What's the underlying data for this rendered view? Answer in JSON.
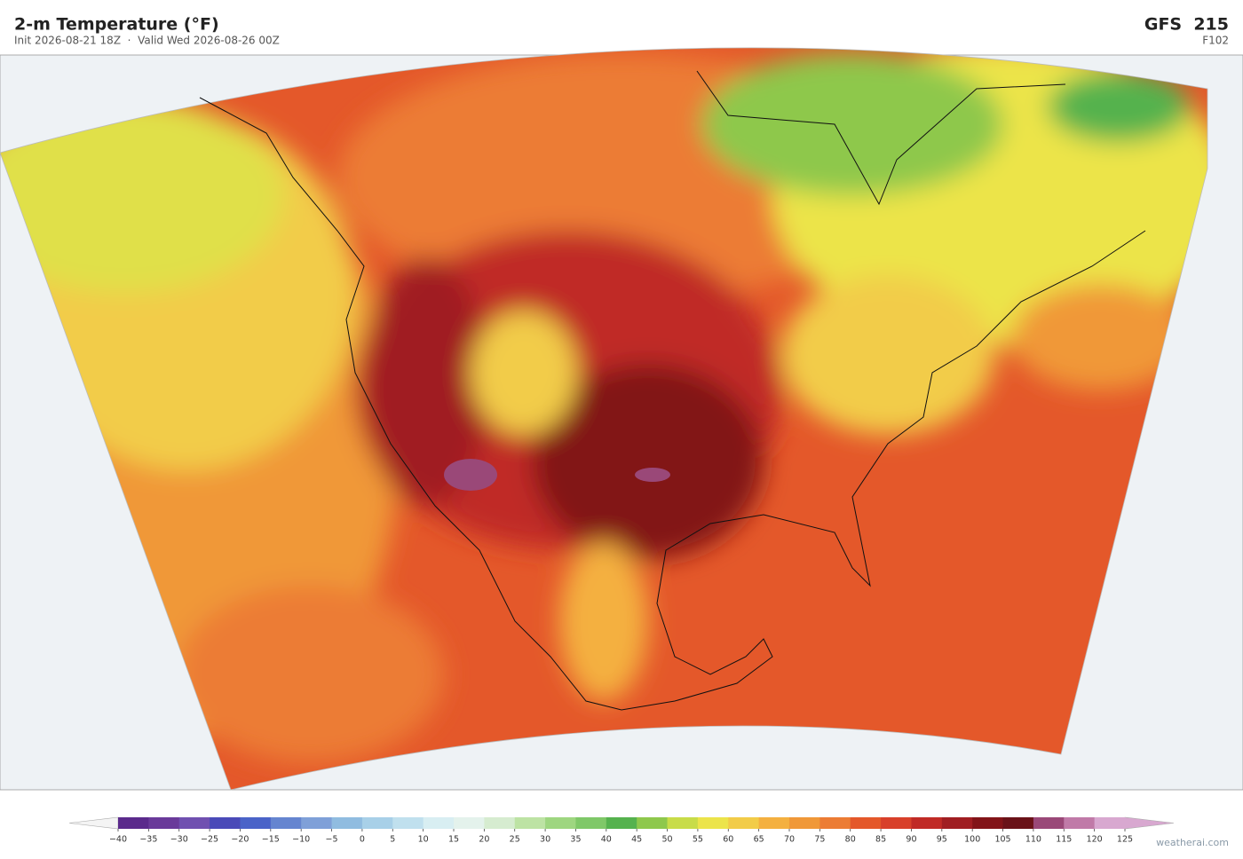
{
  "header": {
    "title": "2-m Temperature  (°F)",
    "subtitle": "Init 2026-08-21 18Z  ·  Valid Wed 2026-08-26 00Z",
    "model": "GFS  215",
    "forecast_hour": "F102"
  },
  "colorbar": {
    "ticks": [
      {
        "value": -40,
        "label": "−40"
      },
      {
        "value": -35,
        "label": "−35"
      },
      {
        "value": -30,
        "label": "−30"
      },
      {
        "value": -25,
        "label": "−25"
      },
      {
        "value": -20,
        "label": "−20"
      },
      {
        "value": -15,
        "label": "−15"
      },
      {
        "value": -10,
        "label": "−10"
      },
      {
        "value": -5,
        "label": "−5"
      },
      0,
      5,
      10,
      15,
      20,
      25,
      30,
      35,
      40,
      45,
      50,
      55,
      60,
      65,
      70,
      75,
      80,
      85,
      90,
      95,
      100,
      105,
      110,
      115,
      120,
      125
    ],
    "colors": [
      "#5b2a8c",
      "#6a3a9a",
      "#7050b0",
      "#4a4ab8",
      "#4a63c8",
      "#6585d0",
      "#7fa0d8",
      "#90bce0",
      "#a8d0e8",
      "#c0e0ee",
      "#d8eef2",
      "#e4f2ec",
      "#d6ecd0",
      "#bde3a4",
      "#9ed680",
      "#7fc868",
      "#55b24e",
      "#8ec84c",
      "#c8dc48",
      "#ece44a",
      "#f2cc48",
      "#f4b040",
      "#f09838",
      "#ec7c34",
      "#e4582a",
      "#d8402a",
      "#c02a26",
      "#a01e22",
      "#821418",
      "#6a1218",
      "#9a4878",
      "#c07aa8",
      "#d8a8d0"
    ],
    "under_color": "#f4f4f4",
    "over_color": "#d8a8d0"
  },
  "footer": {
    "credit": "weatherai.com"
  }
}
